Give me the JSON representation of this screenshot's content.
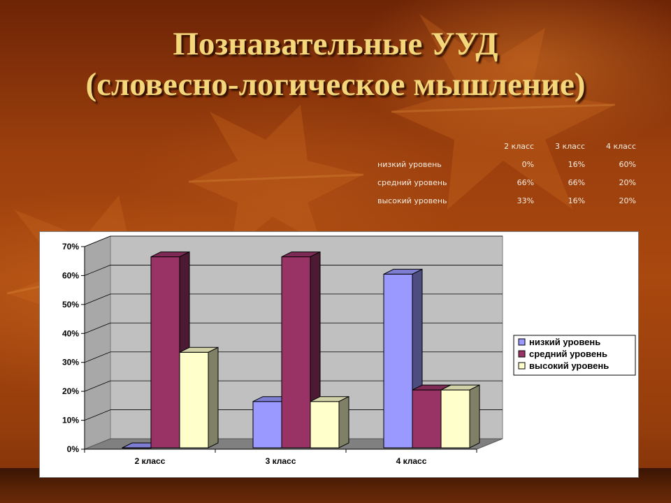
{
  "slide": {
    "title_line1": "Познавательные УУД",
    "title_line2": "(словесно-логическое мышление)"
  },
  "colors": {
    "низкий уровень": "#9999ff",
    "средний уровень": "#993366",
    "высокий уровень": "#ffffcc",
    "title": "#f3d77a",
    "wall": "#c0c0c0",
    "floor": "#808080"
  },
  "table": {
    "columns": [
      "2 класс",
      "3 класс",
      "4 класс"
    ],
    "rows": [
      {
        "label": "низкий уровень",
        "values": [
          "0%",
          "16%",
          "60%"
        ]
      },
      {
        "label": "средний уровень",
        "values": [
          "66%",
          "66%",
          "20%"
        ]
      },
      {
        "label": "высокий уровень",
        "values": [
          "33%",
          "16%",
          "20%"
        ]
      }
    ]
  },
  "chart_data": {
    "type": "bar",
    "style": "3d-clustered-column",
    "categories": [
      "2 класс",
      "3 класс",
      "4 класс"
    ],
    "series": [
      {
        "name": "низкий уровень",
        "values": [
          0,
          16,
          60
        ]
      },
      {
        "name": "средний уровень",
        "values": [
          66,
          66,
          20
        ]
      },
      {
        "name": "высокий уровень",
        "values": [
          33,
          16,
          20
        ]
      }
    ],
    "ylim": [
      0,
      70
    ],
    "yticks": [
      "0%",
      "10%",
      "20%",
      "30%",
      "40%",
      "50%",
      "60%",
      "70%"
    ],
    "grid": true,
    "legend_position": "right"
  }
}
